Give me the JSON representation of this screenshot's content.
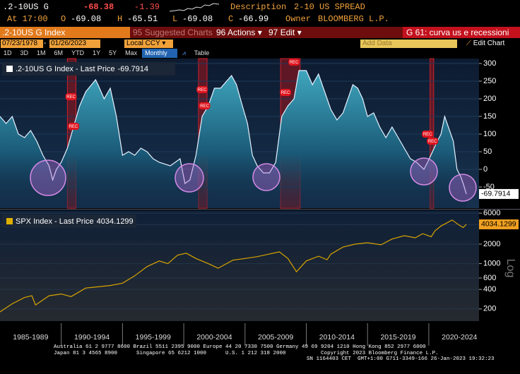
{
  "header": {
    "ticker": ".2-10US G",
    "last": -68.38,
    "change": -1.39,
    "description_label": "Description",
    "description": "2-10 US SPREAD",
    "time": "At 17:00",
    "open_label": "O",
    "open": -69.08,
    "high_label": "H",
    "high": -65.51,
    "low_label": "L",
    "low": -69.08,
    "close_label": "C",
    "close": -66.99,
    "owner_label": "Owner",
    "owner": "BLOOMBERG L.P."
  },
  "toolbar": {
    "security": ".2-10US G Index",
    "suggested_key": "95",
    "suggested": "Suggested Charts",
    "actions_key": "96",
    "actions": "Actions",
    "edit_key": "97",
    "edit": "Edit",
    "chart_name": "G 61: curva us e recessioni"
  },
  "controls": {
    "start_date": "07/23/1978",
    "end_date": "01/26/2023",
    "currency": "Local CCY",
    "add_data": "Add Data",
    "edit_chart": "Edit Chart",
    "ranges": [
      "1D",
      "3D",
      "1M",
      "6M",
      "YTD",
      "1Y",
      "5Y",
      "Max"
    ],
    "frequency": "Monthly",
    "table": "Table"
  },
  "chart_data": [
    {
      "type": "line",
      "xlim": [
        1985,
        2024.1
      ],
      "ylim": [
        -110,
        314
      ],
      "yticks": [
        -50,
        0,
        50,
        100,
        150,
        200,
        250,
        300
      ],
      "grid": true,
      "log": false,
      "x": [
        1985,
        1985.5,
        1986,
        1986.5,
        1987,
        1987.5,
        1988,
        1988.5,
        1989,
        1989.3,
        1989.6,
        1990,
        1990.5,
        1991,
        1991.5,
        1992,
        1992.8,
        1993,
        1993.5,
        1994,
        1994.5,
        1995,
        1995.5,
        1996,
        1996.5,
        1997,
        1997.5,
        1998,
        1998.9,
        1999.3,
        1999.7,
        2000.1,
        2000.5,
        2001,
        2001.5,
        2002,
        2002.5,
        2003,
        2003.9,
        2004.3,
        2004.7,
        2005.2,
        2005.6,
        2006,
        2006.5,
        2007,
        2007.5,
        2008,
        2008.5,
        2009,
        2009.4,
        2010,
        2010.5,
        2011,
        2011.5,
        2012,
        2012.5,
        2013,
        2013.8,
        2014.2,
        2014.6,
        2015,
        2015.5,
        2016,
        2016.5,
        2017,
        2017.5,
        2018,
        2018.5,
        2019,
        2019.6,
        2019.9,
        2020.3,
        2020.7,
        2021,
        2021.3,
        2021.6,
        2022,
        2022.3,
        2022.6,
        2022.8,
        2023.07
      ],
      "series": [
        {
          "name": ".2-10US G Index - Last Price",
          "color": "#e6f2ff",
          "values": [
            150,
            130,
            150,
            100,
            90,
            110,
            80,
            40,
            10,
            -30,
            0,
            20,
            60,
            120,
            180,
            220,
            254,
            240,
            200,
            230,
            150,
            40,
            50,
            40,
            60,
            50,
            30,
            20,
            10,
            20,
            30,
            -40,
            -30,
            40,
            150,
            180,
            230,
            230,
            266,
            240,
            190,
            130,
            40,
            10,
            -10,
            -10,
            20,
            150,
            180,
            200,
            280,
            280,
            240,
            270,
            220,
            170,
            140,
            160,
            240,
            230,
            200,
            150,
            160,
            120,
            90,
            120,
            90,
            60,
            30,
            20,
            0,
            20,
            50,
            80,
            100,
            150,
            120,
            80,
            0,
            -20,
            -40,
            -69.7914
          ]
        }
      ],
      "recessions": [
        {
          "start": 1990.5,
          "end": 1991.2
        },
        {
          "start": 2001.2,
          "end": 2001.9
        },
        {
          "start": 2007.9,
          "end": 2009.5
        },
        {
          "start": 2020.1,
          "end": 2020.4
        }
      ],
      "annotations": [
        {
          "x": 1990.8,
          "y": 206,
          "label": "REC"
        },
        {
          "x": 1991.0,
          "y": 122,
          "label": "REC"
        },
        {
          "x": 2001.5,
          "y": 226,
          "label": "REC"
        },
        {
          "x": 2001.7,
          "y": 180,
          "label": "REC"
        },
        {
          "x": 2008.3,
          "y": 218,
          "label": "REC"
        },
        {
          "x": 2009.0,
          "y": 304,
          "label": "REC"
        },
        {
          "x": 2019.9,
          "y": 100,
          "label": "REC"
        },
        {
          "x": 2020.3,
          "y": 80,
          "label": "REC"
        }
      ]
    },
    {
      "type": "line",
      "xlim": [
        1985,
        2024.1
      ],
      "ylim": [
        130,
        6650
      ],
      "yticks": [
        200,
        400,
        600,
        1000,
        2000,
        4000,
        6000
      ],
      "grid": true,
      "log": true,
      "log_label": "Log",
      "x": [
        1985,
        1986,
        1987,
        1987.6,
        1987.9,
        1989,
        1990,
        1990.8,
        1992,
        1994,
        1995,
        1996,
        1997,
        1998,
        1998.7,
        1999.5,
        2000.2,
        2001,
        2002,
        2002.8,
        2004,
        2005,
        2006,
        2007.8,
        2008.5,
        2009.2,
        2010,
        2011,
        2011.7,
        2012,
        2013,
        2014,
        2015,
        2016.1,
        2017,
        2018,
        2018.9,
        2019.5,
        2020.2,
        2020.5,
        2021,
        2021.9,
        2022.5,
        2022.8,
        2023.07
      ],
      "series": [
        {
          "name": "SPX Index - Last Price",
          "color": "#d8a300",
          "values": [
            180,
            240,
            300,
            320,
            230,
            320,
            340,
            310,
            420,
            460,
            500,
            650,
            900,
            1100,
            1000,
            1350,
            1450,
            1200,
            1000,
            850,
            1130,
            1200,
            1280,
            1520,
            1200,
            750,
            1100,
            1300,
            1150,
            1400,
            1800,
            2000,
            2100,
            1950,
            2400,
            2700,
            2500,
            2900,
            2600,
            3200,
            3800,
            4700,
            3900,
            3600,
            4034.1299
          ]
        }
      ],
      "xticks": [
        {
          "value": 1987.5,
          "label": "1985-1989"
        },
        {
          "value": 1992.5,
          "label": "1990-1994"
        },
        {
          "value": 1997.5,
          "label": "1995-1999"
        },
        {
          "value": 2002.5,
          "label": "2000-2004"
        },
        {
          "value": 2007.5,
          "label": "2005-2009"
        },
        {
          "value": 2012.5,
          "label": "2010-2014"
        },
        {
          "value": 2017.5,
          "label": "2015-2019"
        },
        {
          "value": 2022.5,
          "label": "2020-2024"
        }
      ]
    }
  ],
  "footer": [
    "Australia 61 2 9777 8600 Brazil 5511 2395 9000 Europe 44 20 7330 7500 Germany 49 69 9204 1210 Hong Kong 852 2977 6000",
    "Japan 81 3 4565 8900      Singapore 65 6212 1000      U.S. 1 212 318 2000           Copyright 2023 Bloomberg Finance L.P.",
    "SN 1164403 CET  GMT+1:00 G711-3349-166 26-Jan-2023 19:32:23"
  ]
}
